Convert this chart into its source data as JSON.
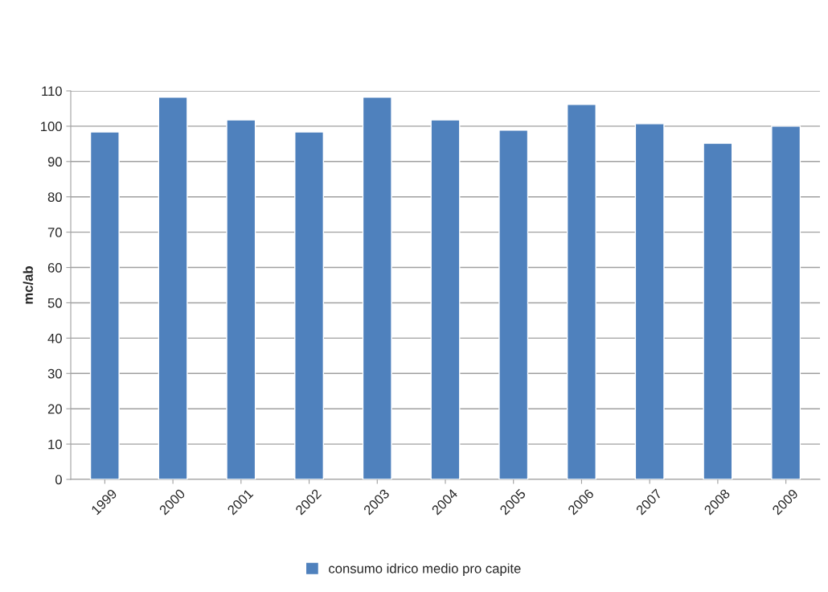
{
  "chart_data": {
    "type": "bar",
    "ylabel": "mc/ab",
    "categories": [
      "1999",
      "2000",
      "2001",
      "2002",
      "2003",
      "2004",
      "2005",
      "2006",
      "2007",
      "2008",
      "2009"
    ],
    "series": [
      {
        "name": "consumo idrico medio pro capite",
        "color": "#4f81bd",
        "values": [
          98.4,
          108.2,
          101.8,
          98.4,
          108.2,
          101.8,
          98.9,
          106.2,
          100.7,
          95.2,
          100.0
        ]
      }
    ],
    "ylim": [
      0,
      110
    ],
    "yticks": [
      0,
      10,
      20,
      30,
      40,
      50,
      60,
      70,
      80,
      90,
      100,
      110
    ],
    "grid": "y",
    "legend": "bottom"
  }
}
